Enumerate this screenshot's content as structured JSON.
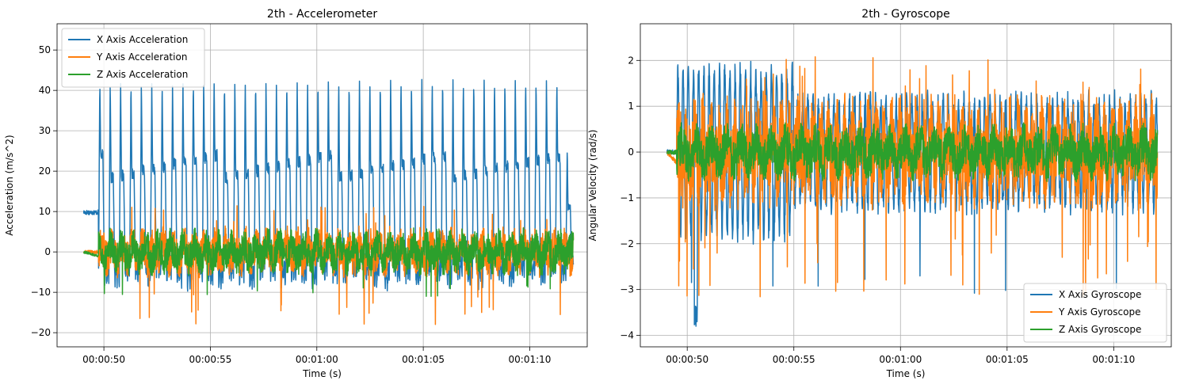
{
  "chart_data": [
    {
      "type": "line",
      "title": "2th - Accelerometer",
      "xlabel": "Time (s)",
      "ylabel": "Acceleration (m/s^2)",
      "x_unit": "seconds (time of day)",
      "xlim": [
        47.8,
        72.7
      ],
      "ylim": [
        -23.5,
        56.5
      ],
      "x_ticks": [
        {
          "value": 50,
          "label": "00:00:50"
        },
        {
          "value": 55,
          "label": "00:00:55"
        },
        {
          "value": 60,
          "label": "00:01:00"
        },
        {
          "value": 65,
          "label": "00:01:05"
        },
        {
          "value": 70,
          "label": "00:01:10"
        }
      ],
      "y_ticks": [
        -20,
        -10,
        0,
        10,
        20,
        30,
        40,
        50
      ],
      "grid": true,
      "legend": "upper-left",
      "series": [
        {
          "name": "X Axis Acceleration",
          "color": "#1f77b4",
          "synthesized": true
        },
        {
          "name": "Y Axis Acceleration",
          "color": "#ff7f0e",
          "synthesized": true
        },
        {
          "name": "Z Axis Acceleration",
          "color": "#2ca02c",
          "synthesized": true
        }
      ]
    },
    {
      "type": "line",
      "title": "2th - Gyroscope",
      "xlabel": "Time (s)",
      "ylabel": "Angular Velocity (rad/s)",
      "x_unit": "seconds (time of day)",
      "xlim": [
        47.8,
        72.7
      ],
      "ylim": [
        -4.25,
        2.8
      ],
      "x_ticks": [
        {
          "value": 50,
          "label": "00:00:50"
        },
        {
          "value": 55,
          "label": "00:00:55"
        },
        {
          "value": 60,
          "label": "00:01:00"
        },
        {
          "value": 65,
          "label": "00:01:05"
        },
        {
          "value": 70,
          "label": "00:01:10"
        }
      ],
      "y_ticks": [
        -4,
        -3,
        -2,
        -1,
        0,
        1,
        2
      ],
      "grid": true,
      "legend": "lower-right",
      "series": [
        {
          "name": "X Axis Gyroscope",
          "color": "#1f77b4",
          "synthesized": true
        },
        {
          "name": "Y Axis Gyroscope",
          "color": "#ff7f0e",
          "synthesized": true
        },
        {
          "name": "Z Axis Gyroscope",
          "color": "#2ca02c",
          "synthesized": true
        }
      ]
    }
  ]
}
